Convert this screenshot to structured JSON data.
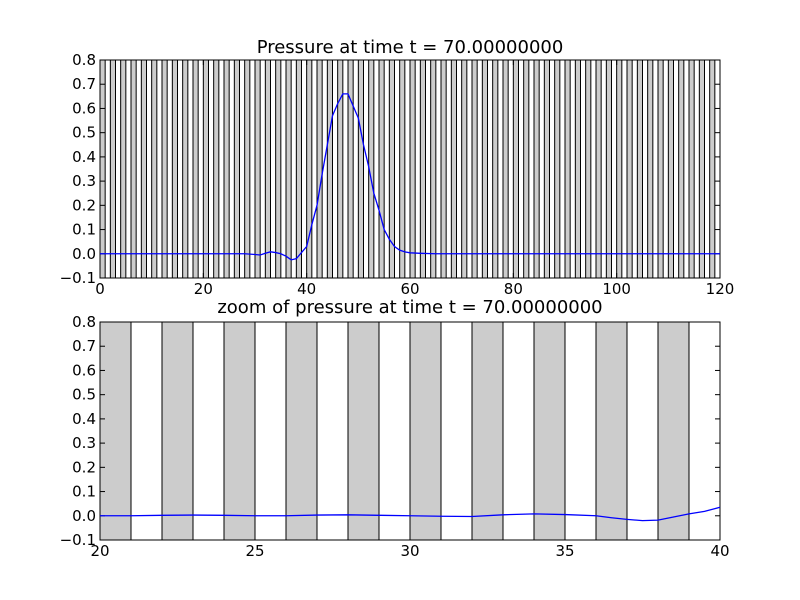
{
  "chart_data": [
    {
      "type": "line",
      "title": "Pressure at time t =    70.00000000",
      "xlim": [
        0,
        120
      ],
      "ylim": [
        -0.1,
        0.8
      ],
      "xticks": [
        0,
        20,
        40,
        60,
        80,
        100,
        120
      ],
      "yticks": [
        -0.1,
        0.0,
        0.1,
        0.2,
        0.3,
        0.4,
        0.5,
        0.6,
        0.7,
        0.8
      ],
      "xtick_labels": [
        "0",
        "20",
        "40",
        "60",
        "80",
        "100",
        "120"
      ],
      "ytick_labels": [
        "−0.1",
        "0.0",
        "0.1",
        "0.2",
        "0.3",
        "0.4",
        "0.5",
        "0.6",
        "0.7",
        "0.8"
      ],
      "background_bands": {
        "start": 0,
        "end": 120,
        "width": 1,
        "period": 2,
        "color": "#cccccc"
      },
      "line_color": "#0000ff",
      "series": [
        {
          "x": [
            0,
            10,
            20,
            25,
            28,
            30,
            31,
            32,
            33,
            34,
            35,
            36,
            37,
            38,
            39,
            40,
            41,
            42,
            43,
            44,
            45,
            46,
            47,
            48,
            49,
            50,
            51,
            52,
            53,
            54,
            55,
            56,
            57,
            58,
            59,
            60,
            62,
            65,
            70,
            80,
            100,
            120
          ],
          "y": [
            0.0,
            0.0,
            0.0,
            0.0,
            0.0,
            -0.003,
            -0.005,
            0.002,
            0.008,
            0.005,
            0.0,
            -0.01,
            -0.025,
            -0.02,
            0.005,
            0.03,
            0.12,
            0.2,
            0.33,
            0.45,
            0.57,
            0.62,
            0.66,
            0.66,
            0.61,
            0.56,
            0.45,
            0.36,
            0.25,
            0.18,
            0.1,
            0.06,
            0.03,
            0.015,
            0.008,
            0.004,
            0.002,
            0.0,
            0.0,
            0.0,
            0.0,
            0.0
          ]
        }
      ]
    },
    {
      "type": "line",
      "title": "zoom of pressure at time t =    70.00000000",
      "xlim": [
        20,
        40
      ],
      "ylim": [
        -0.1,
        0.8
      ],
      "xticks": [
        20,
        25,
        30,
        35,
        40
      ],
      "yticks": [
        -0.1,
        0.0,
        0.1,
        0.2,
        0.3,
        0.4,
        0.5,
        0.6,
        0.7,
        0.8
      ],
      "xtick_labels": [
        "20",
        "25",
        "30",
        "35",
        "40"
      ],
      "ytick_labels": [
        "−0.1",
        "0.0",
        "0.1",
        "0.2",
        "0.3",
        "0.4",
        "0.5",
        "0.6",
        "0.7",
        "0.8"
      ],
      "background_bands": {
        "start": 20,
        "end": 40,
        "width": 1,
        "period": 2,
        "color": "#cccccc"
      },
      "line_color": "#0000ff",
      "series": [
        {
          "x": [
            20,
            21,
            22,
            23,
            24,
            25,
            26,
            27,
            28,
            29,
            30,
            31,
            32,
            33,
            34,
            35,
            36,
            36.5,
            37,
            37.5,
            38,
            38.5,
            39,
            39.5,
            40
          ],
          "y": [
            0.0,
            0.0,
            0.002,
            0.003,
            0.002,
            0.0,
            0.0,
            0.003,
            0.004,
            0.002,
            0.0,
            -0.002,
            -0.003,
            0.004,
            0.008,
            0.005,
            0.0,
            -0.008,
            -0.015,
            -0.02,
            -0.018,
            -0.005,
            0.008,
            0.018,
            0.035
          ]
        }
      ]
    }
  ]
}
